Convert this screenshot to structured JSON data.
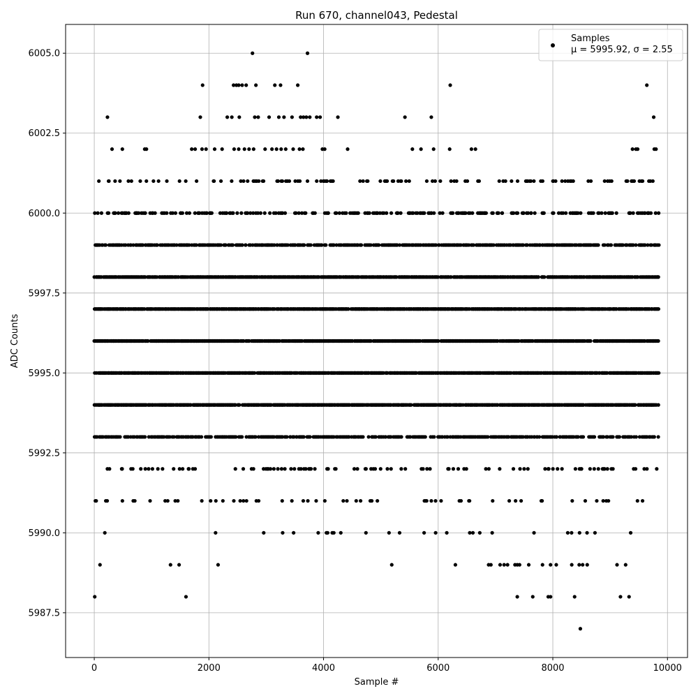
{
  "chart_data": {
    "type": "scatter",
    "title": "Run 670, channel043, Pedestal",
    "xlabel": "Sample #",
    "ylabel": "ADC Counts",
    "xlim": [
      -500,
      10350
    ],
    "ylim": [
      5986.1,
      6005.9
    ],
    "x_ticks": [
      0,
      2000,
      4000,
      6000,
      8000,
      10000
    ],
    "x_tick_labels": [
      "0",
      "2000",
      "4000",
      "6000",
      "8000",
      "10000"
    ],
    "y_ticks": [
      5987.5,
      5990.0,
      5992.5,
      5995.0,
      5997.5,
      6000.0,
      6002.5,
      6005.0
    ],
    "y_tick_labels": [
      "5987.5",
      "5990.0",
      "5992.5",
      "5995.0",
      "5997.5",
      "6000.0",
      "6002.5",
      "6005.0"
    ],
    "grid": true,
    "legend_position": "top-right",
    "marker_color": "#000000",
    "series": [
      {
        "name": "Samples",
        "stats_label": "μ = 5995.92, σ = 2.55",
        "n_samples": 9850,
        "level_values": [
          5987,
          5988,
          5989,
          5990,
          5991,
          5992,
          5993,
          5994,
          5995,
          5996,
          5997,
          5998,
          5999,
          6000,
          6001,
          6002,
          6003,
          6004,
          6005
        ],
        "points": [
          {
            "x": 2760,
            "y": 6005
          },
          {
            "x": 3720,
            "y": 6005
          },
          {
            "x": 1890,
            "y": 6004
          },
          {
            "x": 2430,
            "y": 6004
          },
          {
            "x": 2480,
            "y": 6004
          },
          {
            "x": 2520,
            "y": 6004
          },
          {
            "x": 2580,
            "y": 6004
          },
          {
            "x": 2650,
            "y": 6004
          },
          {
            "x": 2820,
            "y": 6004
          },
          {
            "x": 3150,
            "y": 6004
          },
          {
            "x": 3250,
            "y": 6004
          },
          {
            "x": 3550,
            "y": 6004
          },
          {
            "x": 6210,
            "y": 6004
          },
          {
            "x": 9640,
            "y": 6004
          },
          {
            "x": 230,
            "y": 6003
          },
          {
            "x": 1850,
            "y": 6003
          },
          {
            "x": 2320,
            "y": 6003
          },
          {
            "x": 2400,
            "y": 6003
          },
          {
            "x": 2530,
            "y": 6003
          },
          {
            "x": 2800,
            "y": 6003
          },
          {
            "x": 2860,
            "y": 6003
          },
          {
            "x": 3050,
            "y": 6003
          },
          {
            "x": 3220,
            "y": 6003
          },
          {
            "x": 3310,
            "y": 6003
          },
          {
            "x": 3450,
            "y": 6003
          },
          {
            "x": 3600,
            "y": 6003
          },
          {
            "x": 3650,
            "y": 6003
          },
          {
            "x": 3700,
            "y": 6003
          },
          {
            "x": 3760,
            "y": 6003
          },
          {
            "x": 3880,
            "y": 6003
          },
          {
            "x": 3940,
            "y": 6003
          },
          {
            "x": 4250,
            "y": 6003
          },
          {
            "x": 5420,
            "y": 6003
          },
          {
            "x": 5880,
            "y": 6003
          },
          {
            "x": 9760,
            "y": 6003
          },
          {
            "x": 310,
            "y": 6002
          },
          {
            "x": 490,
            "y": 6002
          },
          {
            "x": 880,
            "y": 6002
          },
          {
            "x": 910,
            "y": 6002
          },
          {
            "x": 1700,
            "y": 6002
          },
          {
            "x": 1760,
            "y": 6002
          },
          {
            "x": 1880,
            "y": 6002
          },
          {
            "x": 1950,
            "y": 6002
          },
          {
            "x": 2100,
            "y": 6002
          },
          {
            "x": 2230,
            "y": 6002
          },
          {
            "x": 2440,
            "y": 6002
          },
          {
            "x": 2520,
            "y": 6002
          },
          {
            "x": 2620,
            "y": 6002
          },
          {
            "x": 2700,
            "y": 6002
          },
          {
            "x": 2780,
            "y": 6002
          },
          {
            "x": 2980,
            "y": 6002
          },
          {
            "x": 3100,
            "y": 6002
          },
          {
            "x": 3180,
            "y": 6002
          },
          {
            "x": 3260,
            "y": 6002
          },
          {
            "x": 3340,
            "y": 6002
          },
          {
            "x": 3470,
            "y": 6002
          },
          {
            "x": 3580,
            "y": 6002
          },
          {
            "x": 3640,
            "y": 6002
          },
          {
            "x": 3980,
            "y": 6002
          },
          {
            "x": 4020,
            "y": 6002
          },
          {
            "x": 4420,
            "y": 6002
          },
          {
            "x": 5550,
            "y": 6002
          },
          {
            "x": 5700,
            "y": 6002
          },
          {
            "x": 5920,
            "y": 6002
          },
          {
            "x": 6200,
            "y": 6002
          },
          {
            "x": 6580,
            "y": 6002
          },
          {
            "x": 6650,
            "y": 6002
          },
          {
            "x": 9390,
            "y": 6002
          },
          {
            "x": 9450,
            "y": 6002
          },
          {
            "x": 9480,
            "y": 6002
          },
          {
            "x": 9770,
            "y": 6002
          },
          {
            "x": 9800,
            "y": 6002
          },
          {
            "x": 1600,
            "y": 5988
          },
          {
            "x": 8,
            "y": 5988
          },
          {
            "x": 7380,
            "y": 5988
          },
          {
            "x": 7650,
            "y": 5988
          },
          {
            "x": 7920,
            "y": 5988
          },
          {
            "x": 7960,
            "y": 5988
          },
          {
            "x": 8380,
            "y": 5988
          },
          {
            "x": 9180,
            "y": 5988
          },
          {
            "x": 9330,
            "y": 5988
          },
          {
            "x": 8480,
            "y": 5987
          },
          {
            "x": 100,
            "y": 5989
          },
          {
            "x": 1330,
            "y": 5989
          },
          {
            "x": 1480,
            "y": 5989
          },
          {
            "x": 2160,
            "y": 5989
          },
          {
            "x": 5190,
            "y": 5989
          },
          {
            "x": 6300,
            "y": 5989
          },
          {
            "x": 6880,
            "y": 5989
          },
          {
            "x": 6920,
            "y": 5989
          },
          {
            "x": 7080,
            "y": 5989
          },
          {
            "x": 7150,
            "y": 5989
          },
          {
            "x": 7210,
            "y": 5989
          },
          {
            "x": 7340,
            "y": 5989
          },
          {
            "x": 7380,
            "y": 5989
          },
          {
            "x": 7420,
            "y": 5989
          },
          {
            "x": 7580,
            "y": 5989
          },
          {
            "x": 7820,
            "y": 5989
          },
          {
            "x": 7960,
            "y": 5989
          },
          {
            "x": 8060,
            "y": 5989
          },
          {
            "x": 8330,
            "y": 5989
          },
          {
            "x": 8460,
            "y": 5989
          },
          {
            "x": 8520,
            "y": 5989
          },
          {
            "x": 8600,
            "y": 5989
          },
          {
            "x": 9120,
            "y": 5989
          },
          {
            "x": 9270,
            "y": 5989
          }
        ]
      }
    ]
  }
}
